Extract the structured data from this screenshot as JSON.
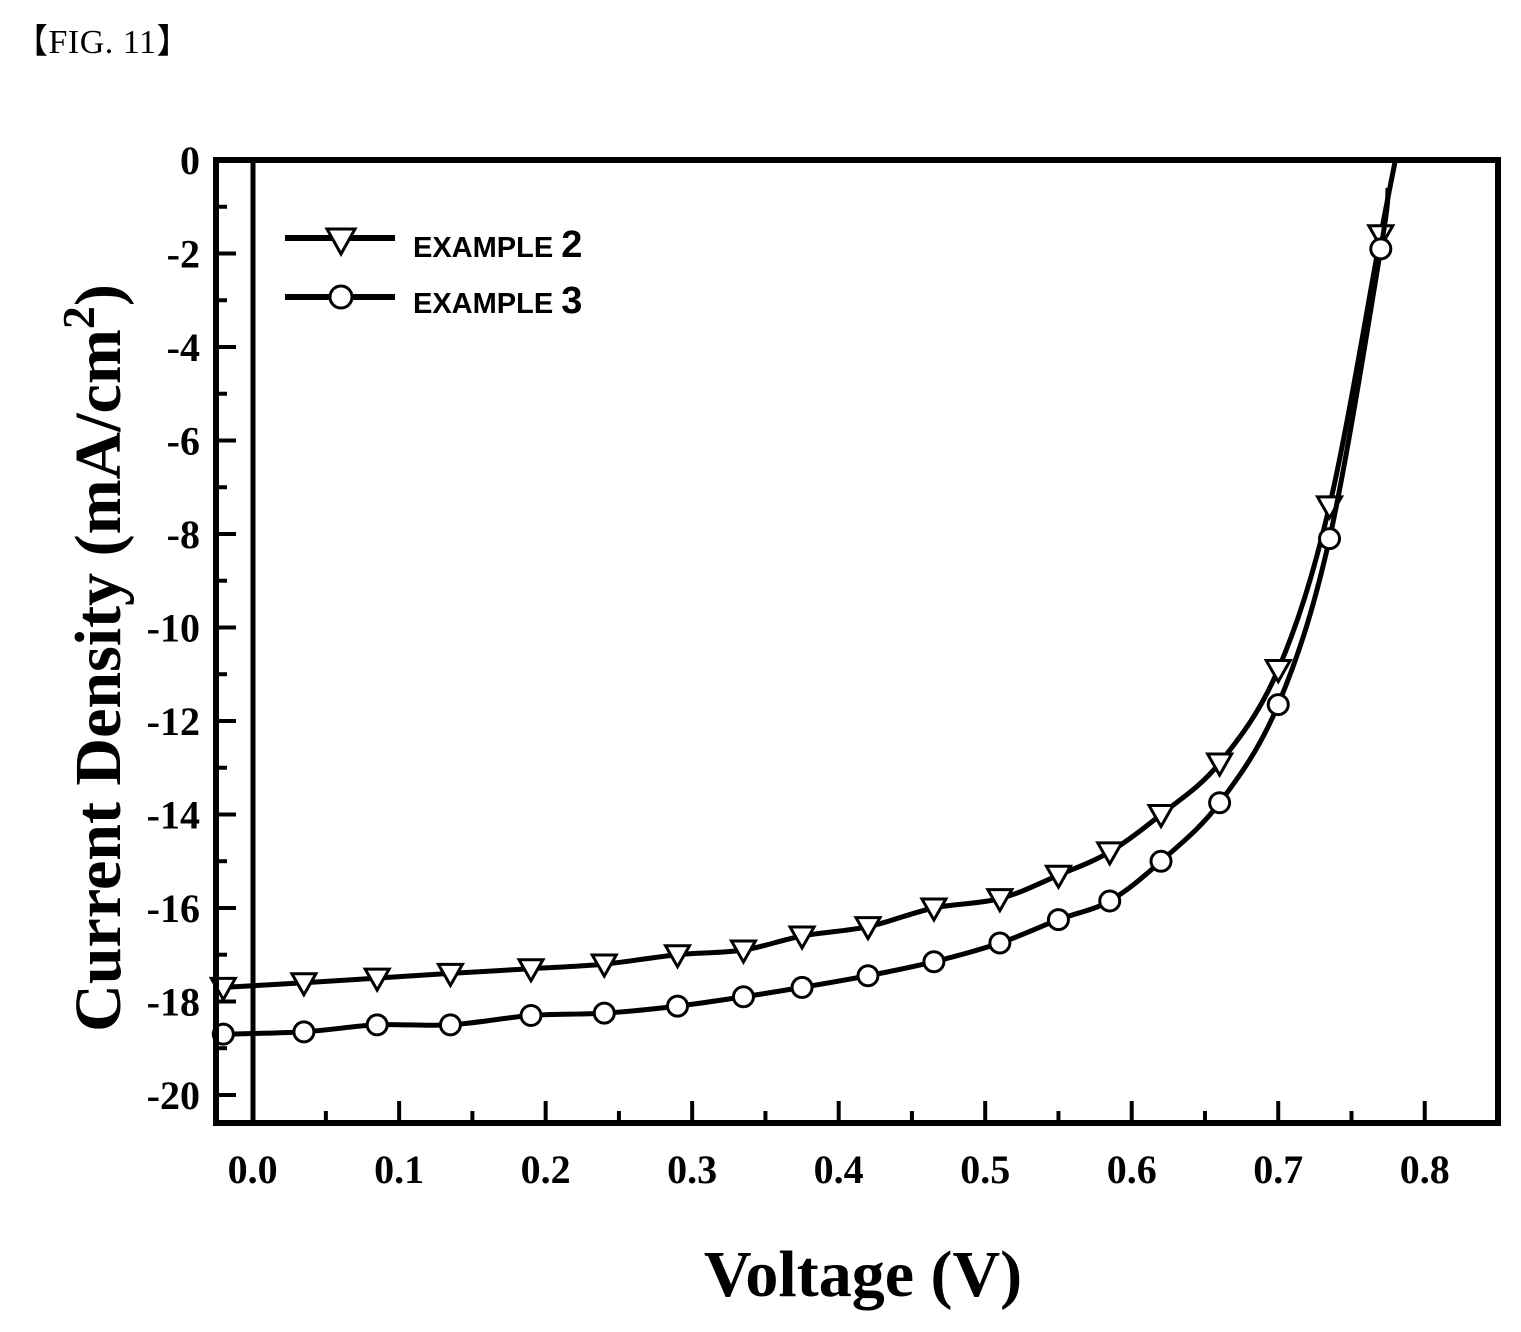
{
  "figure_label": "【FIG. 11】",
  "chart_data": {
    "type": "line",
    "title": "",
    "xlabel": "Voltage (V)",
    "ylabel": "Current Density (mA/cm",
    "ylabel_superscript": "2",
    "ylabel_suffix": ")",
    "xlim": [
      -0.025,
      0.85
    ],
    "ylim": [
      -20.6,
      0
    ],
    "x_ticks": [
      0.0,
      0.1,
      0.2,
      0.3,
      0.4,
      0.5,
      0.6,
      0.7,
      0.8
    ],
    "x_tick_labels": [
      "0.0",
      "0.1",
      "0.2",
      "0.3",
      "0.4",
      "0.5",
      "0.6",
      "0.7",
      "0.8"
    ],
    "y_ticks": [
      0,
      -2,
      -4,
      -6,
      -8,
      -10,
      -12,
      -14,
      -16,
      -18,
      -20
    ],
    "y_tick_labels": [
      "0",
      "-2",
      "-4",
      "-6",
      "-8",
      "-10",
      "-12",
      "-14",
      "-16",
      "-18",
      "-20"
    ],
    "legend_placement": "top-left",
    "grid": false,
    "series": [
      {
        "name": "EXAMPLE 2",
        "legend_prefix": "EXAMPLE ",
        "legend_number": "2",
        "marker": "triangle-down",
        "color": "#000000",
        "x": [
          -0.02,
          0.035,
          0.085,
          0.135,
          0.19,
          0.24,
          0.29,
          0.335,
          0.375,
          0.42,
          0.465,
          0.51,
          0.55,
          0.585,
          0.62,
          0.66,
          0.7,
          0.735,
          0.77
        ],
        "y": [
          -17.7,
          -17.6,
          -17.5,
          -17.4,
          -17.3,
          -17.2,
          -17.0,
          -16.9,
          -16.6,
          -16.4,
          -16.0,
          -15.8,
          -15.3,
          -14.8,
          -14.0,
          -12.9,
          -10.9,
          -7.4,
          -1.6
        ],
        "curve_end": [
          0.78,
          0.0
        ]
      },
      {
        "name": "EXAMPLE 3",
        "legend_prefix": "EXAMPLE ",
        "legend_number": "3",
        "marker": "circle",
        "color": "#000000",
        "x": [
          -0.02,
          0.035,
          0.085,
          0.135,
          0.19,
          0.24,
          0.29,
          0.335,
          0.375,
          0.42,
          0.465,
          0.51,
          0.55,
          0.585,
          0.62,
          0.66,
          0.7,
          0.735,
          0.77
        ],
        "y": [
          -18.7,
          -18.65,
          -18.5,
          -18.5,
          -18.3,
          -18.25,
          -18.1,
          -17.9,
          -17.7,
          -17.45,
          -17.15,
          -16.75,
          -16.25,
          -15.85,
          -15.0,
          -13.75,
          -11.65,
          -8.1,
          -1.9
        ],
        "curve_end": [
          0.775,
          -0.6
        ]
      }
    ]
  }
}
